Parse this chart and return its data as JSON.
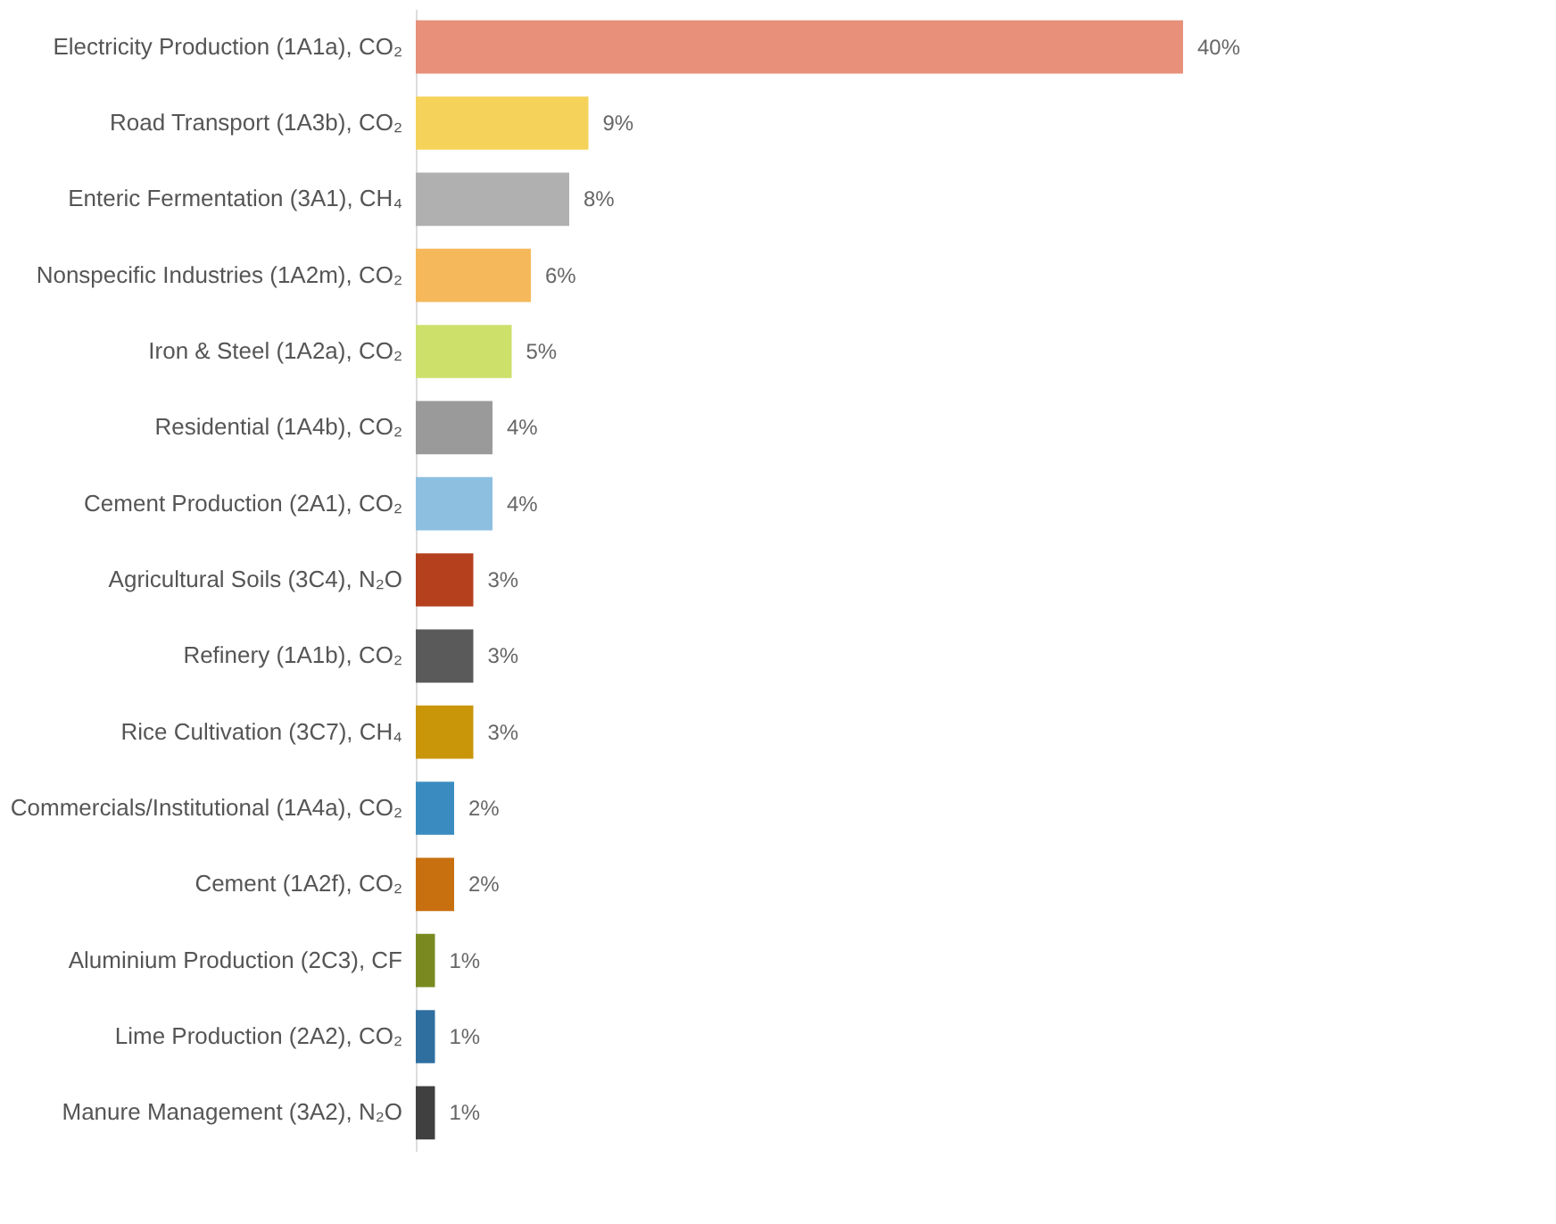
{
  "chart_data": {
    "type": "bar",
    "orientation": "horizontal",
    "data_labels": true,
    "categories": [
      "Electricity Production (1A1a), CO₂",
      "Road Transport (1A3b), CO₂",
      "Enteric Fermentation (3A1), CH₄",
      "Nonspecific Industries (1A2m), CO₂",
      "Iron & Steel (1A2a), CO₂",
      "Residential (1A4b), CO₂",
      "Cement Production (2A1), CO₂",
      "Agricultural Soils (3C4), N₂O",
      "Refinery (1A1b), CO₂",
      "Rice Cultivation (3C7), CH₄",
      "Commercials/Institutional (1A4a), CO₂",
      "Cement (1A2f), CO₂",
      "Aluminium Production (2C3), CF",
      "Lime Production (2A2), CO₂",
      "Manure Management (3A2), N₂O"
    ],
    "values": [
      40,
      9,
      8,
      6,
      5,
      4,
      4,
      3,
      3,
      3,
      2,
      2,
      1,
      1,
      1
    ],
    "value_labels": [
      "40%",
      "9%",
      "8%",
      "6%",
      "5%",
      "4%",
      "4%",
      "3%",
      "3%",
      "3%",
      "2%",
      "2%",
      "1%",
      "1%",
      "1%"
    ],
    "colors": [
      "#e8907a",
      "#f5d35a",
      "#b0b0b0",
      "#f5b85a",
      "#cde06a",
      "#9a9a9a",
      "#8dbfe0",
      "#b5401e",
      "#5a5a5a",
      "#c9960a",
      "#3a8cc0",
      "#c87010",
      "#7a8a20",
      "#2e6fa0",
      "#404040"
    ]
  }
}
